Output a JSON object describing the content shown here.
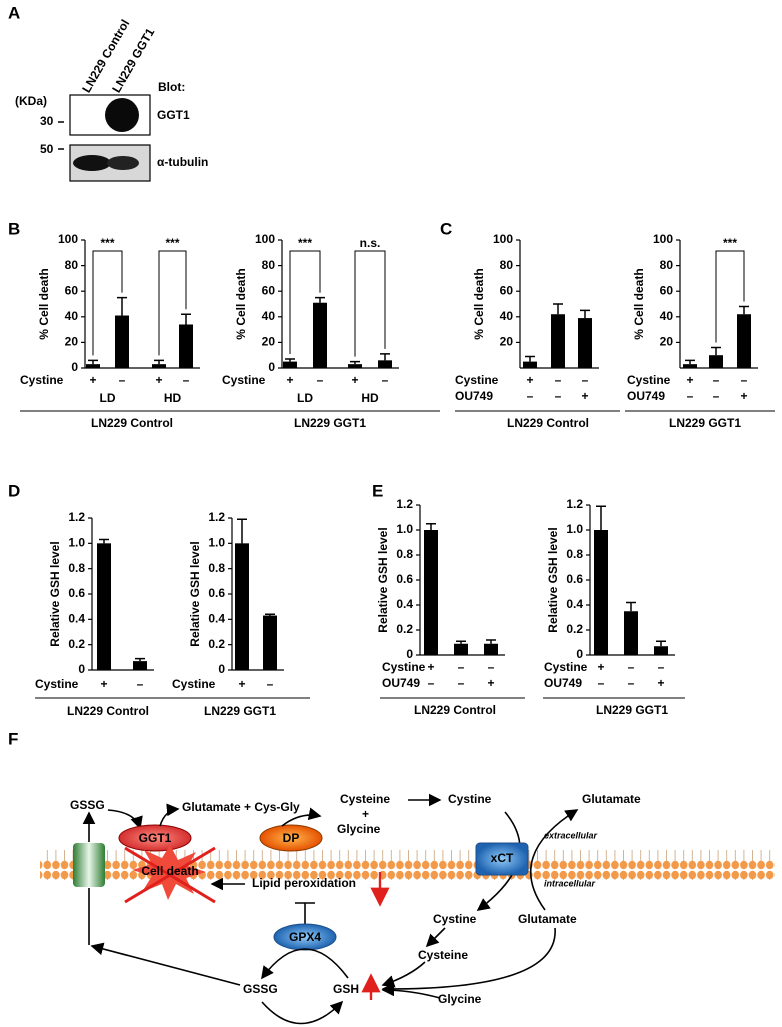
{
  "panel_labels": [
    "A",
    "B",
    "C",
    "D",
    "E",
    "F"
  ],
  "blot": {
    "lanes": [
      "LN229 Control",
      "LN229 GGT1"
    ],
    "header": "Blot:",
    "unit": "(KDa)",
    "rows": [
      {
        "marker": "30",
        "label": "GGT1"
      },
      {
        "marker": "50",
        "label": "α-tubulin"
      }
    ]
  },
  "chart_data": [
    {
      "type": "bar",
      "ylabel": "% Cell death",
      "xlabel": "LN229 Control",
      "categories": [
        null,
        null,
        null,
        null
      ],
      "values": [
        3,
        41,
        3,
        34
      ],
      "errors": [
        3,
        14,
        3,
        8
      ],
      "color": "#000000",
      "ylim": [
        0,
        100
      ],
      "yticks": [
        0,
        20,
        40,
        60,
        80,
        100
      ],
      "rows": [
        {
          "label": "Cystine",
          "values": [
            "+",
            "–",
            "+",
            "–"
          ]
        }
      ],
      "groups": [
        "LD",
        "HD"
      ],
      "annotations": [
        "***",
        "***"
      ]
    },
    {
      "type": "bar",
      "ylabel": "% Cell death",
      "xlabel": "LN229 GGT1",
      "categories": [
        null,
        null,
        null,
        null
      ],
      "values": [
        5,
        51,
        3,
        6
      ],
      "errors": [
        2,
        4,
        2,
        5
      ],
      "color": "#000000",
      "ylim": [
        0,
        100
      ],
      "yticks": [
        0,
        20,
        40,
        60,
        80,
        100
      ],
      "rows": [
        {
          "label": "Cystine",
          "values": [
            "+",
            "–",
            "+",
            "–"
          ]
        }
      ],
      "groups": [
        "LD",
        "HD"
      ],
      "annotations": [
        "***",
        "n.s."
      ]
    },
    {
      "type": "bar",
      "ylabel": "% Cell death",
      "xlabel": "LN229 Control",
      "categories": [
        null,
        null,
        null
      ],
      "values": [
        5,
        42,
        39
      ],
      "errors": [
        4,
        8,
        6
      ],
      "color": "#000000",
      "ylim": [
        0,
        100
      ],
      "yticks": [
        20,
        40,
        60,
        80,
        100
      ],
      "rows": [
        {
          "label": "Cystine",
          "values": [
            "+",
            "–",
            "–"
          ]
        },
        {
          "label": "OU749",
          "values": [
            "–",
            "–",
            "+"
          ]
        }
      ],
      "groups": [],
      "annotations": []
    },
    {
      "type": "bar",
      "ylabel": "% Cell death",
      "xlabel": "LN229 GGT1",
      "categories": [
        null,
        null,
        null
      ],
      "values": [
        3,
        10,
        42
      ],
      "errors": [
        3,
        6,
        6
      ],
      "color": "#000000",
      "ylim": [
        0,
        100
      ],
      "yticks": [
        20,
        40,
        60,
        80,
        100
      ],
      "rows": [
        {
          "label": "Cystine",
          "values": [
            "+",
            "–",
            "–"
          ]
        },
        {
          "label": "OU749",
          "values": [
            "–",
            "–",
            "+"
          ]
        }
      ],
      "groups": [],
      "annotations": [
        "***"
      ]
    },
    {
      "type": "bar",
      "ylabel": "Relative GSH level",
      "xlabel": "LN229 Control",
      "categories": [
        null,
        null
      ],
      "values": [
        1.0,
        0.07
      ],
      "errors": [
        0.03,
        0.02
      ],
      "color": "#000000",
      "ylim": [
        0,
        1.2
      ],
      "yticks": [
        0,
        0.2,
        0.4,
        0.6,
        0.8,
        {
          "value": 1,
          "label": "1.0"
        },
        1.2
      ],
      "rows": [
        {
          "label": "Cystine",
          "values": [
            "+",
            "–"
          ]
        }
      ],
      "groups": [],
      "annotations": []
    },
    {
      "type": "bar",
      "ylabel": "Relative GSH level",
      "xlabel": "LN229 GGT1",
      "categories": [
        null,
        null
      ],
      "values": [
        1.0,
        0.43
      ],
      "errors": [
        0.19,
        0.01
      ],
      "color": "#000000",
      "ylim": [
        0,
        1.2
      ],
      "yticks": [
        0,
        0.2,
        0.4,
        0.6,
        0.8,
        {
          "value": 1,
          "label": "1.0"
        },
        1.2
      ],
      "rows": [
        {
          "label": "Cystine",
          "values": [
            "+",
            "–"
          ]
        }
      ],
      "groups": [],
      "annotations": []
    },
    {
      "type": "bar",
      "ylabel": "Relative GSH level",
      "xlabel": "LN229 Control",
      "categories": [
        null,
        null,
        null
      ],
      "values": [
        1.0,
        0.09,
        0.09
      ],
      "errors": [
        0.05,
        0.02,
        0.03
      ],
      "color": "#000000",
      "ylim": [
        0,
        1.2
      ],
      "yticks": [
        0,
        0.2,
        0.4,
        0.6,
        0.8,
        {
          "value": 1,
          "label": "1.0"
        },
        1.2
      ],
      "rows": [
        {
          "label": "Cystine",
          "values": [
            "+",
            "–",
            "–"
          ]
        },
        {
          "label": "OU749",
          "values": [
            "–",
            "–",
            "+"
          ]
        }
      ],
      "groups": [],
      "annotations": []
    },
    {
      "type": "bar",
      "ylabel": "Relative GSH level",
      "xlabel": "LN229 GGT1",
      "categories": [
        null,
        null,
        null
      ],
      "values": [
        1.0,
        0.35,
        0.07
      ],
      "errors": [
        0.19,
        0.07,
        0.04
      ],
      "color": "#000000",
      "ylim": [
        0,
        1.2
      ],
      "yticks": [
        0,
        0.2,
        0.4,
        0.6,
        0.8,
        {
          "value": 1,
          "label": "1.0"
        },
        1.2
      ],
      "rows": [
        {
          "label": "Cystine",
          "values": [
            "+",
            "–",
            "–"
          ]
        },
        {
          "label": "OU749",
          "values": [
            "–",
            "–",
            "+"
          ]
        }
      ],
      "groups": [],
      "annotations": []
    }
  ],
  "diagram": {
    "gssg_out": "GSSG",
    "ggt1": "GGT1",
    "products": "Glutamate + Cys-Gly",
    "dp": "DP",
    "cysteine_out": "Cysteine",
    "plus": "+",
    "glycine_out": "Glycine",
    "cystine_out": "Cystine",
    "glutamate_out": "Glutamate",
    "extracellular": "extracellular",
    "intracellular": "intracellular",
    "xct": "xCT",
    "cell_death": "Cell death",
    "lipid": "Lipid peroxidation",
    "gpx4": "GPX4",
    "cystine_in": "Cystine",
    "glutamate_in": "Glutamate",
    "cysteine_in": "Cysteine",
    "gssg_in": "GSSG",
    "gsh": "GSH",
    "glycine_in": "Glycine"
  }
}
